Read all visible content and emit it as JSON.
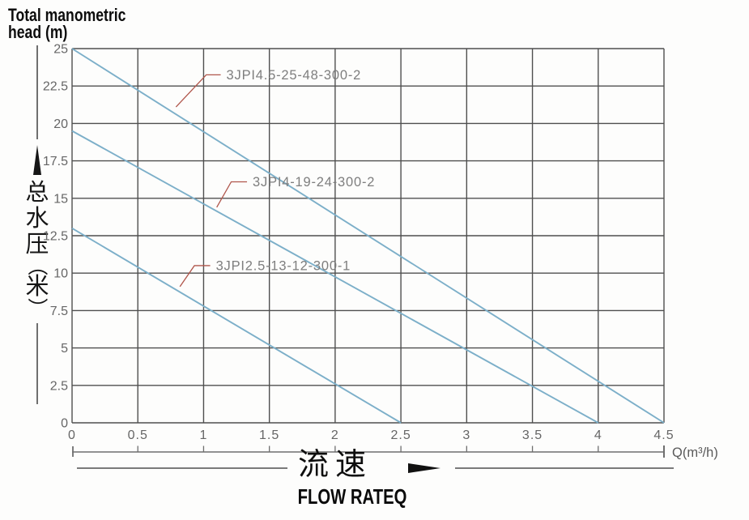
{
  "header": {
    "title_line1": "Total manometric",
    "title_line2": "head (m)"
  },
  "left_axis": {
    "cn_chars": [
      "总",
      "水",
      "压"
    ],
    "unit_chars": [
      "（",
      "米",
      "）"
    ]
  },
  "bottom_axis": {
    "cn_label": "流速",
    "en_label": "FLOW RATEQ"
  },
  "colors": {
    "curve": "#7cafc9",
    "grid": "#4f4f4f",
    "leader": "#b0564b",
    "curve_label_text": "#7e7e7e",
    "tick_text": "#666666",
    "ruler": "#6e6e6e",
    "unit_text": "#5a5a5a",
    "ink": "#111111"
  },
  "chart_data": {
    "type": "line",
    "xlabel": "Q(m³/h)",
    "ylabel": "Total manometric head (m)",
    "ylabel_cn": "总水压（米）",
    "xlabel_cn": "流速",
    "xlabel_en": "FLOW RATEQ",
    "xlim": [
      0,
      4.5
    ],
    "ylim": [
      0,
      25
    ],
    "grid": true,
    "legend_position": "inline-annotations",
    "x_ticks": [
      0,
      0.5,
      1,
      1.5,
      2,
      2.5,
      3,
      3.5,
      4,
      4.5
    ],
    "x_tick_labels": [
      "0",
      "0.5",
      "1",
      "1.5",
      "2",
      "2.5",
      "3",
      "3.5",
      "4",
      "4.5"
    ],
    "y_ticks": [
      0,
      2.5,
      5,
      7.5,
      10,
      12.5,
      15,
      17.5,
      20,
      22.5,
      25
    ],
    "y_tick_labels": [
      "0",
      "2.5",
      "5",
      "7.5",
      "10",
      "12.5",
      "15",
      "17.5",
      "20",
      "22.5",
      "25"
    ],
    "x_unit_label": "Q(m³/h)",
    "series": [
      {
        "name": "3JPI4.5-25-48-300-2",
        "points": [
          [
            0,
            25
          ],
          [
            4.5,
            0
          ]
        ]
      },
      {
        "name": "3JPI4-19-24-300-2",
        "points": [
          [
            0,
            19.5
          ],
          [
            4.0,
            0
          ]
        ]
      },
      {
        "name": "3JPI2.5-13-12-300-1",
        "points": [
          [
            0,
            13
          ],
          [
            2.5,
            0
          ]
        ]
      }
    ],
    "labels": [
      {
        "series": 0,
        "target": [
          0.79,
          21.1
        ],
        "elbow": [
          1.02,
          23.25
        ],
        "text_at": [
          1.13,
          23.25
        ]
      },
      {
        "series": 1,
        "target": [
          1.1,
          14.4
        ],
        "elbow": [
          1.21,
          16.1
        ],
        "text_at": [
          1.33,
          16.1
        ]
      },
      {
        "series": 2,
        "target": [
          0.82,
          9.1
        ],
        "elbow": [
          0.93,
          10.5
        ],
        "text_at": [
          1.05,
          10.5
        ]
      }
    ]
  }
}
